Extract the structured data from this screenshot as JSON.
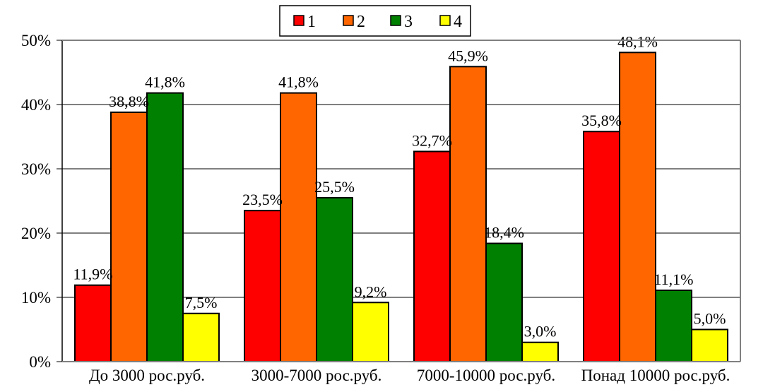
{
  "chart_data": {
    "type": "bar",
    "title": "",
    "xlabel": "",
    "ylabel": "",
    "ylim": [
      0,
      50
    ],
    "yticks": [
      "0%",
      "10%",
      "20%",
      "30%",
      "40%",
      "50%"
    ],
    "grid": true,
    "legend_position": "top-center",
    "categories": [
      "До 3000 рос.руб.",
      "3000-7000 рос.руб.",
      "7000-10000 рос.руб.",
      "Понад 10000 рос.руб."
    ],
    "series": [
      {
        "name": "1",
        "color": "#ff0000",
        "values": [
          11.9,
          23.5,
          32.7,
          35.8
        ],
        "labels": [
          "11,9%",
          "23,5%",
          "32,7%",
          "35,8%"
        ]
      },
      {
        "name": "2",
        "color": "#ff6600",
        "values": [
          38.8,
          41.8,
          45.9,
          48.1
        ],
        "labels": [
          "38,8%",
          "41,8%",
          "45,9%",
          "48,1%"
        ]
      },
      {
        "name": "3",
        "color": "#008000",
        "values": [
          41.8,
          25.5,
          18.4,
          11.1
        ],
        "labels": [
          "41,8%",
          "25,5%",
          "18,4%",
          "11,1%"
        ]
      },
      {
        "name": "4",
        "color": "#ffff00",
        "values": [
          7.5,
          9.2,
          3.0,
          5.0
        ],
        "labels": [
          "7,5%",
          "9,2%",
          "3,0%",
          "5,0%"
        ]
      }
    ]
  }
}
